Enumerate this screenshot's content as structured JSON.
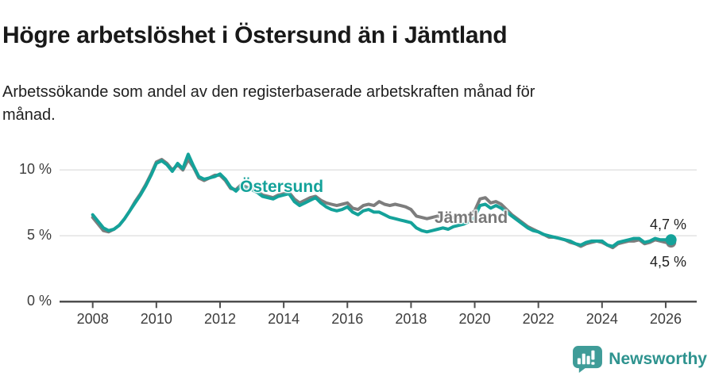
{
  "header": {
    "title": "Högre arbetslöshet i Östersund än i Jämtland",
    "subtitle": "Arbetssökande som andel av den registerbaserade arbetskraften månad för månad."
  },
  "chart_data": {
    "type": "line",
    "title": "Högre arbetslöshet i Östersund än i Jämtland",
    "subtitle": "Arbetssökande som andel av den registerbaserade arbetskraften månad för månad.",
    "unit": "%",
    "x_start": 2008.0,
    "x_step_years": 0.16667,
    "xlim": [
      2007.0,
      2027.0
    ],
    "ylim": [
      0,
      11.5
    ],
    "grid": "horizontal-only",
    "legend_position": "inline-labels",
    "x_ticks": [
      2008,
      2010,
      2012,
      2014,
      2016,
      2018,
      2020,
      2022,
      2024,
      2026
    ],
    "x_tick_labels": [
      "2008",
      "2010",
      "2012",
      "2014",
      "2016",
      "2018",
      "2020",
      "2022",
      "2024",
      "2026"
    ],
    "y_ticks": [
      0,
      5,
      10
    ],
    "y_tick_labels": [
      "0 %",
      "5 %",
      "10 %"
    ],
    "series": [
      {
        "name": "Jämtland",
        "color": "#7d7d7d",
        "end_dot": true,
        "latest_value_label": "4,5 %",
        "values": [
          6.4,
          5.9,
          5.4,
          5.3,
          5.5,
          5.8,
          6.3,
          6.9,
          7.6,
          8.2,
          8.9,
          9.7,
          10.6,
          10.8,
          10.5,
          10.0,
          10.4,
          10.0,
          10.8,
          10.2,
          9.4,
          9.2,
          9.4,
          9.6,
          9.6,
          9.2,
          8.6,
          8.5,
          8.9,
          8.7,
          8.6,
          8.4,
          8.1,
          8.0,
          7.9,
          8.1,
          8.2,
          8.3,
          7.8,
          7.5,
          7.7,
          7.9,
          8.0,
          7.7,
          7.5,
          7.4,
          7.3,
          7.4,
          7.5,
          7.1,
          7.0,
          7.3,
          7.4,
          7.3,
          7.6,
          7.4,
          7.3,
          7.4,
          7.3,
          7.2,
          7.0,
          6.5,
          6.4,
          6.3,
          6.4,
          6.5,
          6.4,
          6.3,
          6.4,
          6.4,
          6.5,
          6.6,
          6.9,
          7.8,
          7.9,
          7.5,
          7.6,
          7.4,
          7.0,
          6.6,
          6.3,
          6.0,
          5.7,
          5.5,
          5.3,
          5.1,
          4.9,
          4.9,
          4.8,
          4.7,
          4.5,
          4.4,
          4.2,
          4.4,
          4.5,
          4.6,
          4.5,
          4.3,
          4.1,
          4.4,
          4.5,
          4.6,
          4.6,
          4.7,
          4.4,
          4.5,
          4.7,
          4.6,
          4.5,
          4.5
        ]
      },
      {
        "name": "Östersund",
        "color": "#14a29a",
        "end_dot": true,
        "latest_value_label": "4,7 %",
        "values": [
          6.6,
          6.1,
          5.6,
          5.4,
          5.5,
          5.8,
          6.3,
          6.9,
          7.5,
          8.1,
          8.8,
          9.6,
          10.5,
          10.7,
          10.4,
          9.9,
          10.5,
          10.1,
          11.2,
          10.3,
          9.5,
          9.3,
          9.4,
          9.5,
          9.7,
          9.3,
          8.7,
          8.4,
          8.8,
          8.6,
          8.5,
          8.3,
          8.0,
          7.9,
          7.8,
          8.0,
          8.1,
          8.2,
          7.6,
          7.3,
          7.5,
          7.7,
          7.9,
          7.5,
          7.2,
          7.0,
          6.9,
          7.0,
          7.2,
          6.8,
          6.6,
          6.9,
          7.0,
          6.8,
          6.8,
          6.6,
          6.4,
          6.3,
          6.2,
          6.1,
          6.0,
          5.6,
          5.4,
          5.3,
          5.4,
          5.5,
          5.6,
          5.5,
          5.7,
          5.8,
          5.9,
          6.1,
          6.4,
          7.3,
          7.4,
          7.1,
          7.3,
          7.1,
          6.8,
          6.5,
          6.2,
          5.9,
          5.6,
          5.4,
          5.3,
          5.1,
          5.0,
          4.9,
          4.8,
          4.7,
          4.6,
          4.4,
          4.3,
          4.5,
          4.6,
          4.6,
          4.6,
          4.3,
          4.2,
          4.5,
          4.6,
          4.7,
          4.8,
          4.8,
          4.5,
          4.6,
          4.8,
          4.7,
          4.7,
          4.7
        ]
      }
    ],
    "end_labels": [
      {
        "text": "4,7 %",
        "series": "Östersund"
      },
      {
        "text": "4,5 %",
        "series": "Jämtland"
      }
    ]
  },
  "footer": {
    "brand": "Newsworthy"
  },
  "colors": {
    "ostersund_line": "#14a29a",
    "jamtland_line": "#7d7d7d",
    "axis": "#4f4f4f",
    "gridline": "#e3e3e3",
    "tick_text": "#3d3d3d",
    "title_text": "#191919",
    "brand_teal": "#3f9c98"
  }
}
